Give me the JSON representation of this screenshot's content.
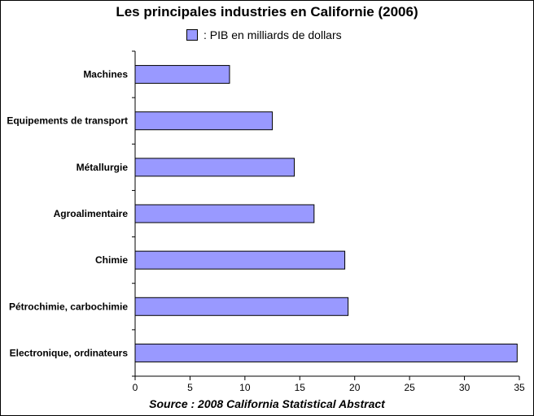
{
  "chart_data": {
    "type": "bar",
    "orientation": "horizontal",
    "title": "Les principales industries en Californie (2006)",
    "legend": ": PIB en milliards de dollars",
    "source": "Source : 2008 California Statistical Abstract",
    "categories": [
      "Machines",
      "Equipements de transport",
      "Métallurgie",
      "Agroalimentaire",
      "Chimie",
      "Pétrochimie, carbochimie",
      "Electronique, ordinateurs"
    ],
    "values": [
      8.6,
      12.5,
      14.5,
      16.3,
      19.1,
      19.4,
      34.8
    ],
    "xlim": [
      0,
      35
    ],
    "xticks": [
      0,
      5,
      10,
      15,
      20,
      25,
      30,
      35
    ],
    "bar_color": "#9999ff",
    "grid": false,
    "legend_position": "top-center"
  }
}
